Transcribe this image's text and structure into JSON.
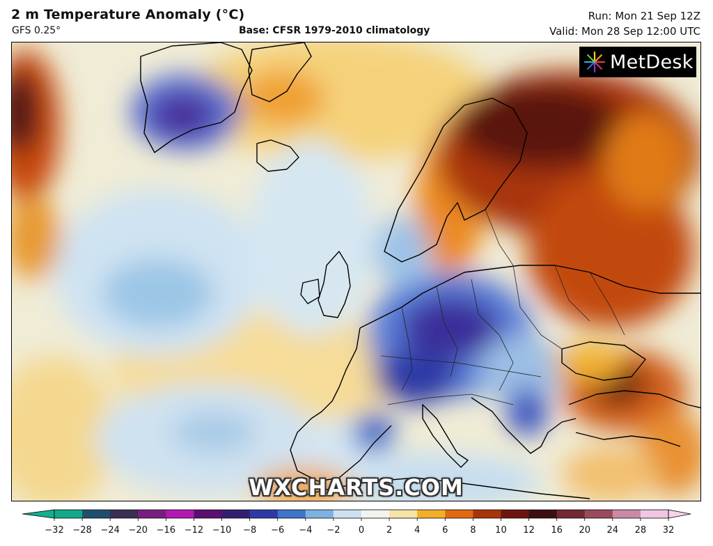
{
  "header": {
    "title": "2 m Temperature Anomaly (°C)",
    "model": "GFS 0.25°",
    "base": "Base: CFSR 1979-2010 climatology",
    "run": "Run: Mon 21 Sep 12Z",
    "valid": "Valid: Mon 28 Sep 12:00 UTC"
  },
  "logo": {
    "text": "MetDesk"
  },
  "watermark": "WXCHARTS.COM",
  "colorbar": {
    "ticks": [
      "−32",
      "−28",
      "−24",
      "−20",
      "−16",
      "−12",
      "−10",
      "−8",
      "−6",
      "−4",
      "−2",
      "0",
      "2",
      "4",
      "6",
      "8",
      "10",
      "12",
      "16",
      "20",
      "24",
      "28",
      "32"
    ],
    "colors": [
      "#13a88a",
      "#1f4f6c",
      "#3a2f52",
      "#7a1d82",
      "#b11ab0",
      "#5a1070",
      "#32206e",
      "#2d3aa6",
      "#3f74c9",
      "#7fb1e0",
      "#cde0f0",
      "#f2f2ee",
      "#f5e3a8",
      "#f2b02a",
      "#e06a12",
      "#a8350a",
      "#6e1410",
      "#3c0f14",
      "#742a32",
      "#9a4a5c",
      "#c98aa6",
      "#f0c6e0"
    ],
    "left_arrow_color": "#12b08d",
    "right_arrow_color": "#f7d3ea"
  }
}
